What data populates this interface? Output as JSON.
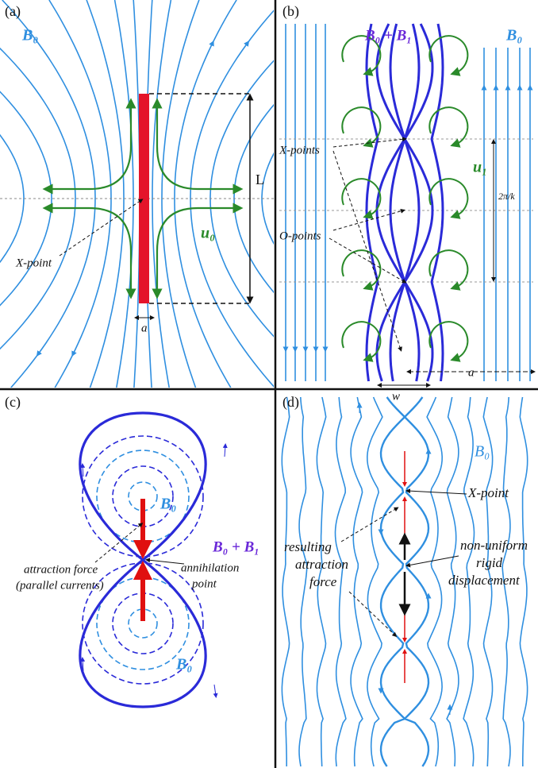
{
  "panels": [
    {
      "label": "(a)",
      "texts": {
        "field": "B₀",
        "length": "L",
        "xpoint": "X-point",
        "flow": "u₀",
        "width": "a"
      }
    },
    {
      "label": "(b)",
      "texts": {
        "field_total": "B₀ + B₁",
        "field": "B₀",
        "xpoints": "X-points",
        "flow": "u₁",
        "period": "2π/k",
        "opoints": "O-points",
        "w": "w",
        "a": "a"
      }
    },
    {
      "label": "(c)",
      "texts": {
        "field_top": "B₀",
        "field_total": "B₀ + B₁",
        "attraction": [
          "attraction force",
          "(parallel currents)"
        ],
        "annihilation": [
          "annihilation",
          "point"
        ],
        "field_bottom": "B₀"
      }
    },
    {
      "label": "(d)",
      "texts": {
        "field": "B₀",
        "xpoint": "X-point",
        "resulting": [
          "resulting",
          "attraction",
          "force"
        ],
        "displacement": [
          "non-uniform",
          "rigid",
          "displacement"
        ]
      }
    }
  ]
}
